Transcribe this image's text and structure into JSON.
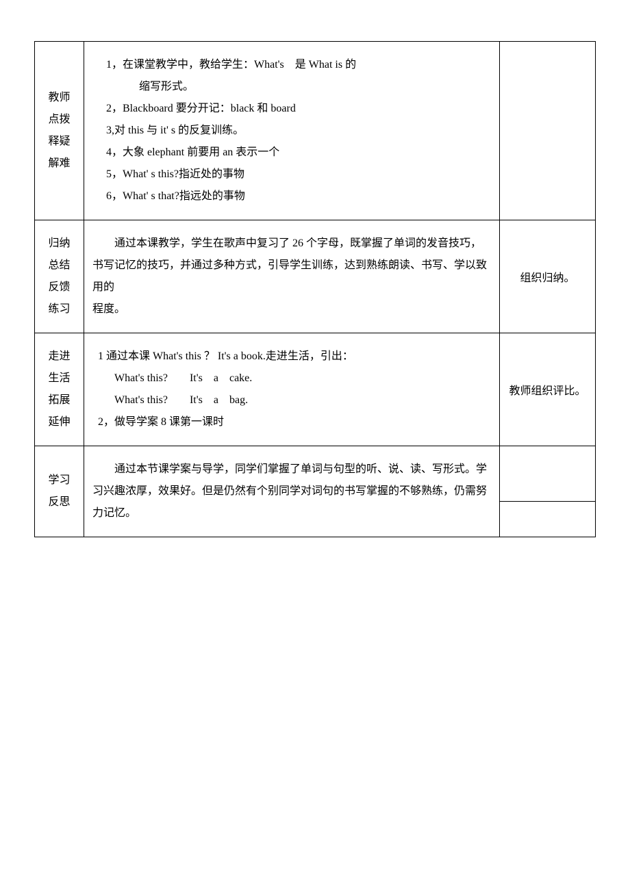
{
  "row1": {
    "leftLine1": "教师",
    "leftLine2": "点拨",
    "leftLine3": "释疑",
    "leftLine4": "解难",
    "item1a": "1，在课堂教学中，教给学生：What's　是 What is 的",
    "item1b": "缩写形式。",
    "item2": "2，Blackboard 要分开记：black 和 board",
    "item3": "3,对 this 与 it' s 的反复训练。",
    "item4": "4，大象 elephant 前要用 an 表示一个",
    "item5": "5，What' s this?指近处的事物",
    "item6": "6，What' s that?指远处的事物",
    "right": ""
  },
  "row2": {
    "leftLine1": "归纳",
    "leftLine2": "总结",
    "leftLine3": "反馈",
    "leftLine4": "练习",
    "para1": "通过本课教学，学生在歌声中复习了 26 个字母，既掌握了单词的发音技巧，书写记忆的技巧，并通过多种方式，引导学生训练，达到熟练朗读、书写、学以致用的",
    "para2": "程度。",
    "right": "组织归纳。"
  },
  "row3": {
    "leftLine1": "走进",
    "leftLine2": "生活",
    "leftLine3": "拓展",
    "leftLine4": "延伸",
    "item1": "1 通过本课 What's this ？ It's a book.走进生活，引出：",
    "line2": "What's this?　　It's　a　cake.",
    "line3": "What's this?　　It's　a　bag.",
    "item2": "2，做导学案 8 课第一课时",
    "right": "教师组织评比。"
  },
  "row4": {
    "leftLine1": "学习",
    "leftLine2": "反思",
    "para": "通过本节课学案与导学，同学们掌握了单词与句型的听、说、读、写形式。学习兴趣浓厚，效果好。但是仍然有个别同学对词句的书写掌握的不够熟练，仍需努力记忆。",
    "right": ""
  }
}
